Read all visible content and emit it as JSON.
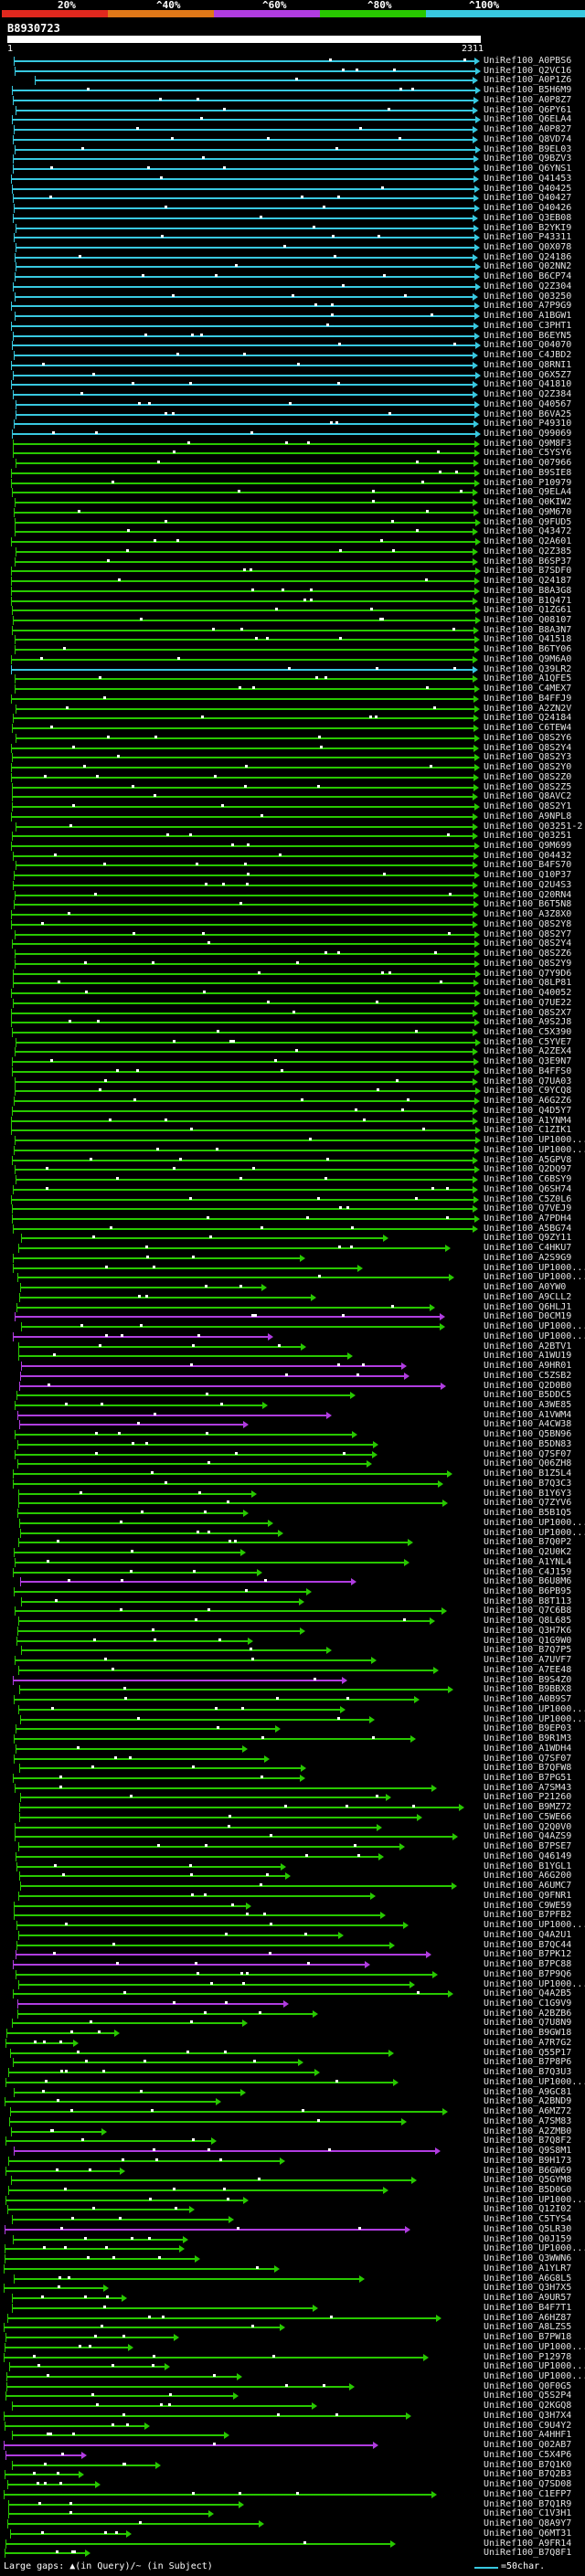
{
  "legend": {
    "ticks": [
      "20%",
      "^40%",
      "^60%",
      "^80%",
      "^100%"
    ],
    "colors": [
      "#e0281e",
      "#e07818",
      "#b03ce0",
      "#28c800",
      "#38c8e0"
    ]
  },
  "query": {
    "id": "B8930723",
    "start": "1",
    "end": "2311"
  },
  "hits": [
    "UniRef100_A0PBS6",
    "UniRef100_Q2VC16",
    "UniRef100_A0P1Z6",
    "UniRef100_B5H6M9",
    "UniRef100_A0P8Z7",
    "UniRef100_Q6PY61",
    "UniRef100_Q6ELA4",
    "UniRef100_A0P827",
    "UniRef100_Q8VD74",
    "UniRef100_B9EL03",
    "UniRef100_Q9BZV3",
    "UniRef100_Q6YNS1",
    "UniRef100_Q41453",
    "UniRef100_Q40425",
    "UniRef100_Q40427",
    "UniRef100_Q40426",
    "UniRef100_Q3EB08",
    "UniRef100_B2YKI9",
    "UniRef100_P43311",
    "UniRef100_Q0X078",
    "UniRef100_Q24186",
    "UniRef100_Q02NN2",
    "UniRef100_B6CP74",
    "UniRef100_Q2Z304",
    "UniRef100_Q03250",
    "UniRef100_A7P9G9",
    "UniRef100_A1BGW1",
    "UniRef100_C3PHT1",
    "UniRef100_B6EYN5",
    "UniRef100_Q04070",
    "UniRef100_C4JBD2",
    "UniRef100_Q8RNI1",
    "UniRef100_Q6X5Z7",
    "UniRef100_Q41810",
    "UniRef100_Q2Z384",
    "UniRef100_Q40567",
    "UniRef100_B6VA25",
    "UniRef100_P49310",
    "UniRef100_Q99069",
    "UniRef100_Q9M8F3",
    "UniRef100_C5YSY6",
    "UniRef100_Q07966",
    "UniRef100_B9SIE8",
    "UniRef100_P10979",
    "UniRef100_Q9ELA4",
    "UniRef100_Q0KIW2",
    "UniRef100_Q9M670",
    "UniRef100_Q9FUD5",
    "UniRef100_Q43472",
    "UniRef100_Q2A601",
    "UniRef100_Q2Z385",
    "UniRef100_B6SP37",
    "UniRef100_B7SDF0",
    "UniRef100_Q24187",
    "UniRef100_B8A3G8",
    "UniRef100_B1Q471",
    "UniRef100_Q1ZG61",
    "UniRef100_Q08107",
    "UniRef100_B8A3N7",
    "UniRef100_Q41518",
    "UniRef100_B6TY06",
    "UniRef100_Q9M6A0",
    "UniRef100_Q39LR2",
    "UniRef100_A1QFE5",
    "UniRef100_C4MEX7",
    "UniRef100_B4FFJ9",
    "UniRef100_A2ZN2V",
    "UniRef100_Q24184",
    "UniRef100_C6TEW4",
    "UniRef100_Q8S2Y6",
    "UniRef100_Q8S2Y4",
    "UniRef100_Q8S2Y3",
    "UniRef100_Q8S2Y0",
    "UniRef100_Q8S2Z0",
    "UniRef100_Q8S2Z5",
    "UniRef100_Q8AVC2",
    "UniRef100_Q8S2Y1",
    "UniRef100_A9NPL8",
    "UniRef100_Q03251-2",
    "UniRef100_Q03251",
    "UniRef100_Q9M699",
    "UniRef100_Q04432",
    "UniRef100_B4FS70",
    "UniRef100_Q10P37",
    "UniRef100_Q2U4S3",
    "UniRef100_Q20RN4",
    "UniRef100_B6T5N8",
    "UniRef100_A3Z8X0",
    "UniRef100_Q8S2Y8",
    "UniRef100_Q8S2Y7",
    "UniRef100_Q8S2Y4",
    "UniRef100_Q8S2Z6",
    "UniRef100_Q8S2Y9",
    "UniRef100_Q7Y9D6",
    "UniRef100_Q8LP81",
    "UniRef100_Q40052",
    "UniRef100_Q7UE22",
    "UniRef100_Q8S2X7",
    "UniRef100_A9S2J8",
    "UniRef100_C5X390",
    "UniRef100_C5YVE7",
    "UniRef100_A2ZEX4",
    "UniRef100_Q3E9N7",
    "UniRef100_B4FFS0",
    "UniRef100_Q7UA03",
    "UniRef100_C9YCQ8",
    "UniRef100_A6G2Z6",
    "UniRef100_Q4D5Y7",
    "UniRef100_A1YNM4",
    "UniRef100_C1ZIK1",
    "UniRef100_UP1000...",
    "UniRef100_UP1000...",
    "UniRef100_A5GPV8",
    "UniRef100_Q2DQ97",
    "UniRef100_C6BSY9",
    "UniRef100_Q6SH74",
    "UniRef100_C5Z0L6",
    "UniRef100_Q7VEJ9",
    "UniRef100_A7PDH4",
    "UniRef100_A5BG74",
    "UniRef100_Q9ZY11",
    "UniRef100_C4HKU7",
    "UniRef100_A2S9G9",
    "UniRef100_UP1000...",
    "UniRef100_UP1000...",
    "UniRef100_A0YW0",
    "UniRef100_A9CLL2",
    "UniRef100_Q6HLJ1",
    "UniRef100_D0CM19",
    "UniRef100_UP1000...",
    "UniRef100_UP1000...",
    "UniRef100_A2BTV1",
    "UniRef100_A1WU19",
    "UniRef100_A9HR01",
    "UniRef100_C5ZSB2",
    "UniRef100_Q2D0B0",
    "UniRef100_B5DDC5",
    "UniRef100_A3WE85",
    "UniRef100_A1VWM4",
    "UniRef100_A4CW38",
    "UniRef100_Q5BN96",
    "UniRef100_B5DN83",
    "UniRef100_Q7SF07",
    "UniRef100_Q06ZH8",
    "UniRef100_B1Z5L4",
    "UniRef100_B7Q3C3",
    "UniRef100_B1Y6Y3",
    "UniRef100_Q7ZYV6",
    "UniRef100_B5B1Q5",
    "UniRef100_UP1000...",
    "UniRef100_UP1000...",
    "UniRef100_B7Q0P2",
    "UniRef100_Q2U0K2",
    "UniRef100_A1YNL4",
    "UniRef100_C4J159",
    "UniRef100_B6U8M6",
    "UniRef100_B6PB95",
    "UniRef100_B8T113",
    "UniRef100_Q7C6B8",
    "UniRef100_Q8L685",
    "UniRef100_Q3H7K6",
    "UniRef100_Q1G9W0",
    "UniRef100_B7Q7P5",
    "UniRef100_A7UVF7",
    "UniRef100_A7EE48",
    "UniRef100_B9S4Z0",
    "UniRef100_B9BBX8",
    "UniRef100_A0B9S7",
    "UniRef100_UP1000...",
    "UniRef100_UP1000...",
    "UniRef100_B9EP03",
    "UniRef100_B9R1M3",
    "UniRef100_A1WDH4",
    "UniRef100_Q7SF07",
    "UniRef100_B7QFW8",
    "UniRef100_B7PG51",
    "UniRef100_A7SM43",
    "UniRef100_P21260",
    "UniRef100_B9MZ72",
    "UniRef100_C5WE66",
    "UniRef100_Q2Q0V0",
    "UniRef100_Q4AZS9",
    "UniRef100_B7PSE7",
    "UniRef100_Q46149",
    "UniRef100_B1YGL1",
    "UniRef100_A6G200",
    "UniRef100_A6UMC7",
    "UniRef100_Q9FNR1",
    "UniRef100_C9WE59",
    "UniRef100_B7PFB2",
    "UniRef100_UP1000...",
    "UniRef100_Q4A2U1",
    "UniRef100_B7QC44",
    "UniRef100_B7PK12",
    "UniRef100_B7PC88",
    "UniRef100_B7P9Q6",
    "UniRef100_UP1000...",
    "UniRef100_Q4A2B5",
    "UniRef100_C1G9V9",
    "UniRef100_A2BZB6",
    "UniRef100_Q7U8N9",
    "UniRef100_B9GW18",
    "UniRef100_A7R7G2",
    "UniRef100_Q55P17",
    "UniRef100_B7P8P6",
    "UniRef100_B7Q3U3",
    "UniRef100_UP1000...",
    "UniRef100_A9GC81",
    "UniRef100_A2BND9",
    "UniRef100_A6MZ72",
    "UniRef100_A7SM83",
    "UniRef100_A2ZMB0",
    "UniRef100_B7Q8F2",
    "UniRef100_Q9S8M1",
    "UniRef100_B9H173",
    "UniRef100_B6GW69",
    "UniRef100_Q5GYM8",
    "UniRef100_B5D0G0",
    "UniRef100_UP1000...",
    "UniRef100_Q12I02",
    "UniRef100_C5TYS4",
    "UniRef100_Q5LR30",
    "UniRef100_Q0J159",
    "UniRef100_UP1000...",
    "UniRef100_Q3WWN6",
    "UniRef100_A1YLR7",
    "UniRef100_A6G8L5",
    "UniRef100_Q3H7X5",
    "UniRef100_A9UR57",
    "UniRef100_B4F7T1",
    "UniRef100_A6HZ87",
    "UniRef100_A8LZS5",
    "UniRef100_B7PW18",
    "UniRef100_UP1000...",
    "UniRef100_P12978",
    "UniRef100_UP1000...",
    "UniRef100_UP1000...",
    "UniRef100_Q0F0G5",
    "UniRef100_Q5S2P4",
    "UniRef100_Q2KGQ8",
    "UniRef100_Q3H7X4",
    "UniRef100_C9U4Y2",
    "UniRef100_A4HHF1",
    "UniRef100_Q02AB7",
    "UniRef100_C5X4P6",
    "UniRef100_B7Q1K0",
    "UniRef100_B7Q2B3",
    "UniRef100_Q7SD08",
    "UniRef100_C1EFP7",
    "UniRef100_B7Q1R9",
    "UniRef100_C1V3H1",
    "UniRef100_Q8A9Y7",
    "UniRef100_Q6MT31",
    "UniRef100_A9FR14",
    "UniRef100_B7Q8F1"
  ],
  "footer": {
    "text": "Large gaps: ▲(in Query)/~ (in Subject)",
    "scale_label": "=50char."
  }
}
